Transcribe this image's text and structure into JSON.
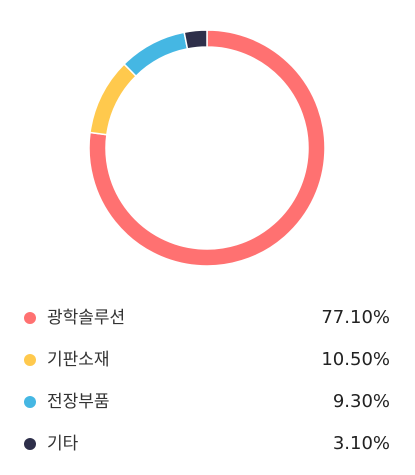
{
  "chart_data": {
    "type": "pie",
    "donut": true,
    "categories": [
      "광학솔루션",
      "기판소재",
      "전장부품",
      "기타"
    ],
    "values": [
      77.1,
      10.5,
      9.3,
      3.1
    ],
    "value_labels": [
      "77.10%",
      "10.50%",
      "9.30%",
      "3.10%"
    ],
    "colors": [
      "#ff7171",
      "#ffc94d",
      "#45b7e3",
      "#2e2f4a"
    ],
    "start": "top",
    "direction": "clockwise",
    "legend": "bottom"
  }
}
